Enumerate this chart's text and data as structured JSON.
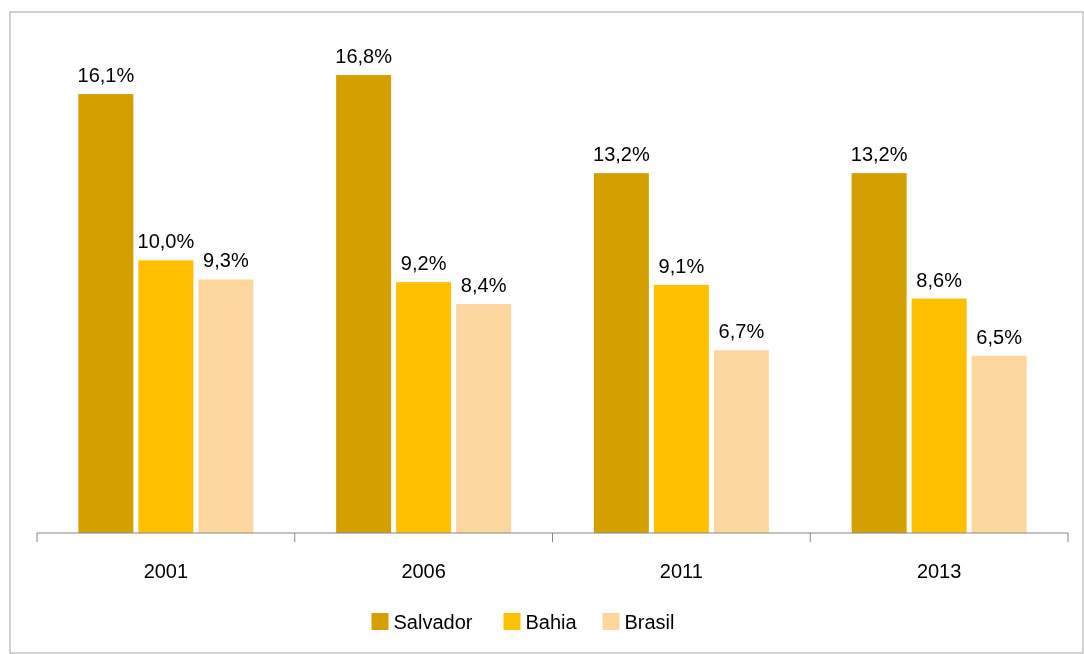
{
  "chart_data": {
    "type": "bar",
    "categories": [
      "2001",
      "2006",
      "2011",
      "2013"
    ],
    "series": [
      {
        "name": "Salvador",
        "color": "#d4a000",
        "values": [
          16.1,
          16.8,
          13.2,
          13.2
        ],
        "value_labels": [
          "16,1%",
          "16,8%",
          "13,2%",
          "13,2%"
        ]
      },
      {
        "name": "Bahia",
        "color": "#ffc000",
        "values": [
          10.0,
          9.2,
          9.1,
          8.6
        ],
        "value_labels": [
          "10,0%",
          "9,2%",
          "9,1%",
          "8,6%"
        ]
      },
      {
        "name": "Brasil",
        "color": "#fdd79e",
        "values": [
          9.3,
          8.4,
          6.7,
          6.5
        ],
        "value_labels": [
          "9,3%",
          "8,4%",
          "6,7%",
          "6,5%"
        ]
      }
    ],
    "legend": "bottom"
  }
}
